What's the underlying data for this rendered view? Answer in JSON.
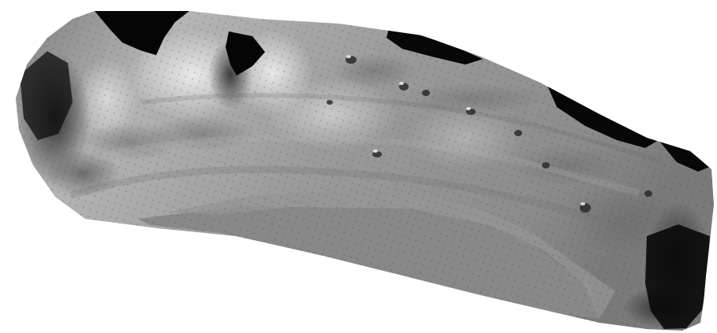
{
  "image": {
    "subject": "shaded-relief-terrain-surface",
    "palette": {
      "background": "#ffffff",
      "base_gray": "#8e8e8e",
      "flat_gray": "#898989",
      "light_gray": "#d8d8d8",
      "dark_gray": "#2a2a2a",
      "shadow": "#050505"
    }
  }
}
